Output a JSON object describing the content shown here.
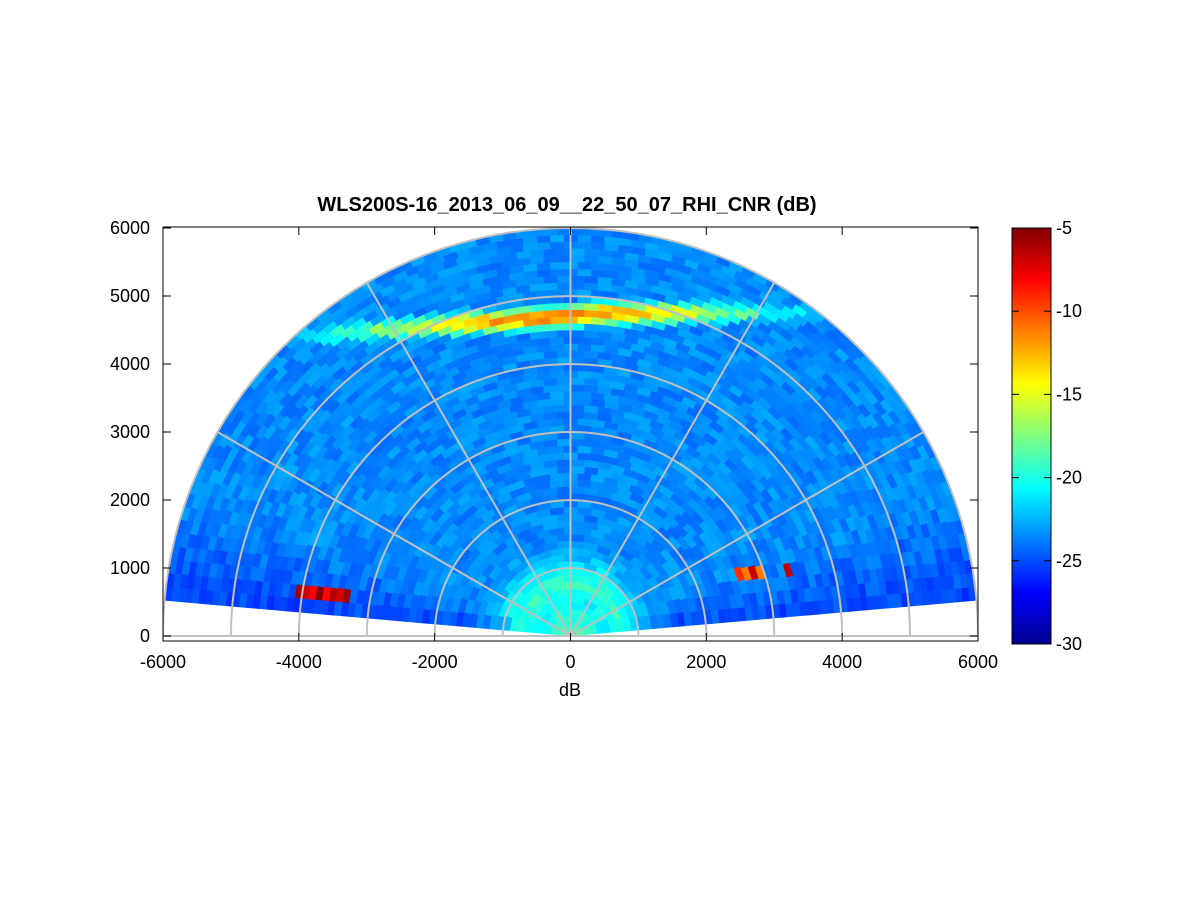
{
  "chart_data": {
    "type": "heatmap",
    "title": "WLS200S-16_2013_06_09__22_50_07_RHI_CNR (dB)",
    "xlabel": "dB",
    "ylabel": "",
    "xlim": [
      -6000,
      6000
    ],
    "ylim": [
      0,
      6000
    ],
    "xticks": [
      "-6000",
      "-4000",
      "-2000",
      "0",
      "2000",
      "4000",
      "6000"
    ],
    "yticks": [
      "0",
      "1000",
      "2000",
      "3000",
      "4000",
      "5000",
      "6000"
    ],
    "polar_grid": {
      "range_rings": [
        1000,
        2000,
        3000,
        4000,
        5000,
        6000
      ],
      "spokes_deg": [
        0,
        30,
        60,
        90,
        120,
        150,
        180
      ]
    },
    "scan": {
      "min_elevation_deg": 5,
      "max_range": 6000,
      "gate_spacing": 100
    },
    "colorbar": {
      "colormap": "jet",
      "clim": [
        -30,
        -5
      ],
      "ticks": [
        "-5",
        "-10",
        "-15",
        "-20",
        "-25",
        "-30"
      ]
    },
    "features": [
      {
        "name": "near-range aerosol layer",
        "range": [
          0,
          1100
        ],
        "elevation_deg": [
          5,
          175
        ],
        "cnr_db": -20
      },
      {
        "name": "residual layer",
        "range": [
          1300,
          1450
        ],
        "elevation_deg": [
          15,
          165
        ],
        "cnr_db": -22
      },
      {
        "name": "elevated aerosol layer",
        "height": [
          4300,
          4700
        ],
        "cnr_db": -11
      },
      {
        "name": "hard target left",
        "x": [
          -4000,
          -3200
        ],
        "y": [
          580,
          720
        ],
        "cnr_db": -6
      },
      {
        "name": "hard target right",
        "x": [
          2400,
          3600
        ],
        "y": [
          850,
          980
        ],
        "cnr_db": -6
      }
    ]
  }
}
